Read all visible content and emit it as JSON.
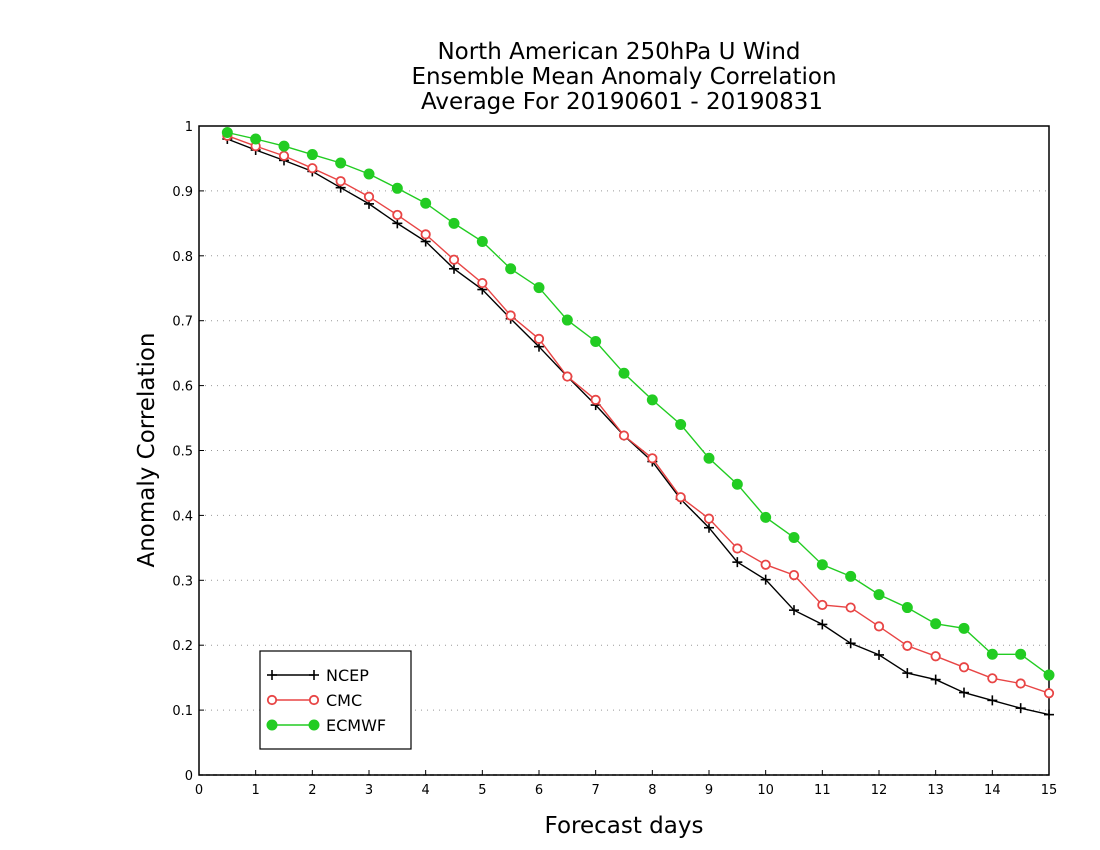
{
  "chart_data": {
    "type": "line",
    "title_lines": [
      "North American 250hPa U Wind",
      "Ensemble Mean Anomaly Correlation",
      "Average For 20190601 - 20190831"
    ],
    "xlabel": "Forecast days",
    "ylabel": "Anomaly Correlation",
    "xlim": [
      0,
      15
    ],
    "ylim": [
      0,
      1
    ],
    "x_ticks": [
      0,
      1,
      2,
      3,
      4,
      5,
      6,
      7,
      8,
      9,
      10,
      11,
      12,
      13,
      14,
      15
    ],
    "x_tick_labels": [
      "0",
      "1",
      "2",
      "3",
      "4",
      "5",
      "6",
      "7",
      "8",
      "9",
      "10",
      "11",
      "12",
      "13",
      "14",
      "15"
    ],
    "y_ticks": [
      0,
      0.1,
      0.2,
      0.3,
      0.4,
      0.5,
      0.6,
      0.7,
      0.8,
      0.9,
      1
    ],
    "y_tick_labels": [
      "0",
      "0.1",
      "0.2",
      "0.3",
      "0.4",
      "0.5",
      "0.6",
      "0.7",
      "0.8",
      "0.9",
      "1"
    ],
    "grid": "horizontal dotted",
    "legend_position": "bottom-left",
    "x": [
      0.5,
      1,
      1.5,
      2,
      2.5,
      3,
      3.5,
      4,
      4.5,
      5,
      5.5,
      6,
      6.5,
      7,
      7.5,
      8,
      8.5,
      9,
      9.5,
      10,
      10.5,
      11,
      11.5,
      12,
      12.5,
      13,
      13.5,
      14,
      14.5,
      15
    ],
    "series": [
      {
        "name": "NCEP",
        "color": "#000000",
        "marker": "plus",
        "values": [
          0.98,
          0.963,
          0.947,
          0.93,
          0.905,
          0.88,
          0.85,
          0.822,
          0.78,
          0.748,
          0.703,
          0.66,
          0.614,
          0.57,
          0.523,
          0.483,
          0.425,
          0.381,
          0.328,
          0.301,
          0.254,
          0.232,
          0.203,
          0.185,
          0.157,
          0.147,
          0.127,
          0.115,
          0.103,
          0.093
        ]
      },
      {
        "name": "CMC",
        "color": "#e84545",
        "marker": "open-circle",
        "values": [
          0.985,
          0.969,
          0.954,
          0.935,
          0.915,
          0.891,
          0.863,
          0.833,
          0.794,
          0.758,
          0.708,
          0.672,
          0.614,
          0.578,
          0.523,
          0.488,
          0.428,
          0.395,
          0.349,
          0.324,
          0.308,
          0.262,
          0.258,
          0.229,
          0.199,
          0.183,
          0.166,
          0.149,
          0.141,
          0.126
        ]
      },
      {
        "name": "ECMWF",
        "color": "#22cc22",
        "marker": "filled-circle",
        "values": [
          0.99,
          0.98,
          0.969,
          0.956,
          0.943,
          0.926,
          0.904,
          0.881,
          0.85,
          0.822,
          0.78,
          0.751,
          0.701,
          0.668,
          0.619,
          0.578,
          0.54,
          0.488,
          0.448,
          0.397,
          0.366,
          0.324,
          0.306,
          0.278,
          0.258,
          0.233,
          0.226,
          0.186,
          0.186,
          0.154
        ]
      }
    ]
  }
}
